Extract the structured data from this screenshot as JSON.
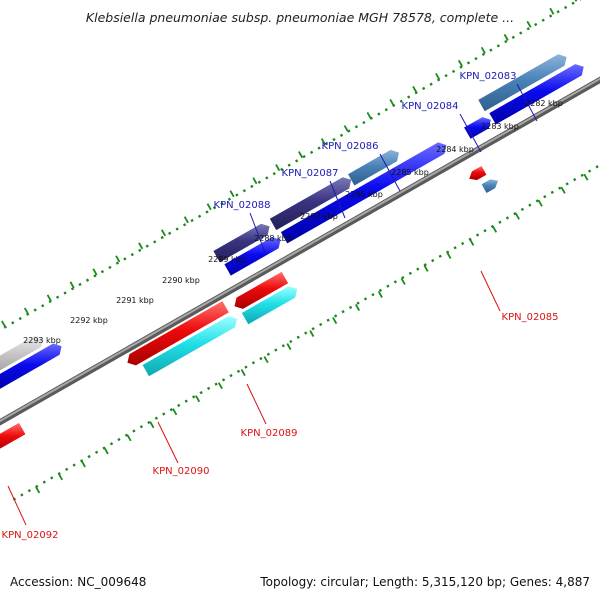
{
  "title": "Klebsiella pneumoniae subsp. pneumoniae MGH 78578, complete ...",
  "footer": {
    "accession": "Accession: NC_009648",
    "summary": "Topology: circular; Length: 5,315,120 bp; Genes: 4,887"
  },
  "colors": {
    "ruler": "#1a8a1a",
    "backbone": "#808080",
    "forward_label": "#1a1ab8",
    "reverse_label": "#dd1111"
  },
  "ticks": [
    {
      "label": "2282 kbp"
    },
    {
      "label": "2283 kbp"
    },
    {
      "label": "2284 kbp"
    },
    {
      "label": "2285 kbp"
    },
    {
      "label": "2286 kbp"
    },
    {
      "label": "2287 kbp"
    },
    {
      "label": "2288 kbp"
    },
    {
      "label": "2289 kbp"
    },
    {
      "label": "2290 kbp"
    },
    {
      "label": "2291 kbp"
    },
    {
      "label": "2292 kbp"
    },
    {
      "label": "2293 kbp"
    }
  ],
  "genes": [
    {
      "label": "KPN_02083",
      "strand": "forward"
    },
    {
      "label": "KPN_02084",
      "strand": "forward"
    },
    {
      "label": "KPN_02085",
      "strand": "reverse"
    },
    {
      "label": "KPN_02086",
      "strand": "forward"
    },
    {
      "label": "KPN_02087",
      "strand": "forward"
    },
    {
      "label": "KPN_02088",
      "strand": "forward"
    },
    {
      "label": "KPN_02089",
      "strand": "reverse"
    },
    {
      "label": "KPN_02090",
      "strand": "reverse"
    },
    {
      "label": "KPN_02092",
      "strand": "reverse"
    }
  ]
}
